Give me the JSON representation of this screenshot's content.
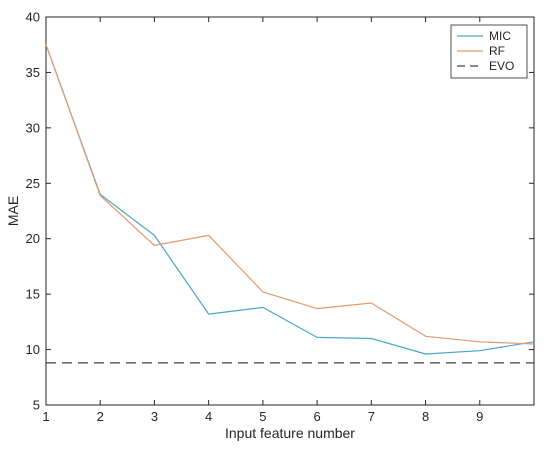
{
  "chart_data": {
    "type": "line",
    "title": "",
    "xlabel": "Input feature number",
    "ylabel": "MAE",
    "xlim": [
      1,
      10
    ],
    "ylim": [
      5,
      40
    ],
    "x": [
      1,
      2,
      3,
      4,
      5,
      6,
      7,
      8,
      9,
      10
    ],
    "xticks": [
      "1",
      "2",
      "3",
      "4",
      "5",
      "6",
      "7",
      "8",
      "9"
    ],
    "yticks": [
      "5",
      "10",
      "15",
      "20",
      "25",
      "30",
      "35",
      "40"
    ],
    "grid": false,
    "legend_position": "top-right",
    "series": [
      {
        "name": "MIC",
        "color": "#4aa7c8",
        "style": "solid",
        "values": [
          37.5,
          24.0,
          20.3,
          13.2,
          13.8,
          11.1,
          11.0,
          9.6,
          9.9,
          10.7
        ]
      },
      {
        "name": "RF",
        "color": "#e49a6c",
        "style": "solid",
        "values": [
          37.5,
          23.9,
          19.4,
          20.3,
          15.2,
          13.7,
          14.2,
          11.2,
          10.7,
          10.5
        ]
      },
      {
        "name": "EVO",
        "color": "#404040",
        "style": "dashed",
        "values": [
          8.8,
          8.8,
          8.8,
          8.8,
          8.8,
          8.8,
          8.8,
          8.8,
          8.8,
          8.8
        ]
      }
    ]
  }
}
